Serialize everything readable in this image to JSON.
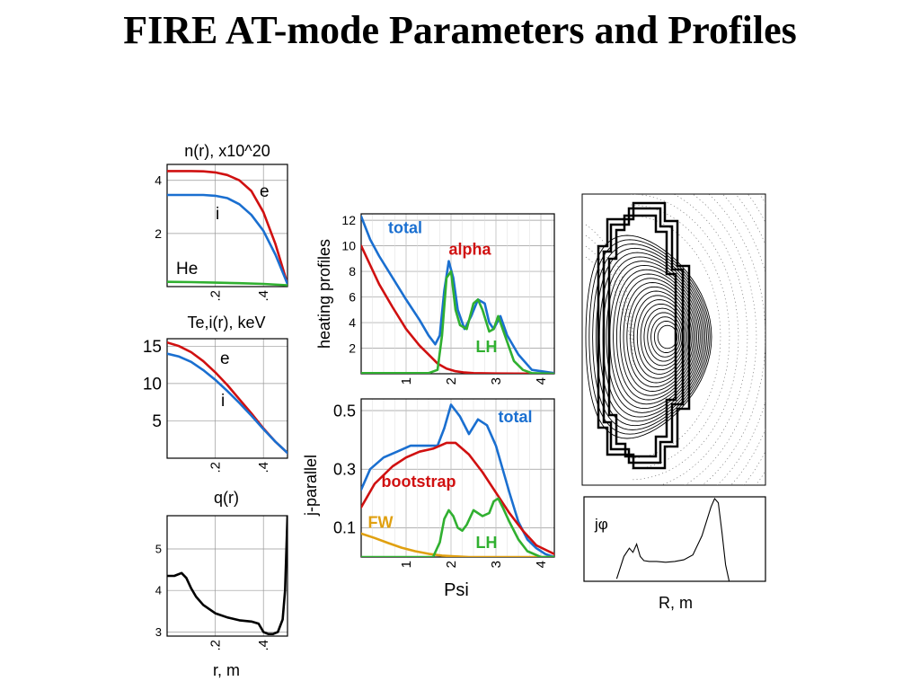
{
  "title": "FIRE AT-mode Parameters and Profiles",
  "chart_data": [
    {
      "id": "density",
      "type": "line",
      "title": "n(r), x10^20",
      "xlabel": "",
      "ylabel": "",
      "xlim": [
        0,
        0.5
      ],
      "ylim": [
        0,
        4.6
      ],
      "xticks": [
        0.2,
        0.4
      ],
      "xtick_labels": [
        ".2",
        ".4"
      ],
      "yticks": [
        2,
        4
      ],
      "ytick_labels": [
        "2",
        "4"
      ],
      "grid": true,
      "series": [
        {
          "name": "e",
          "color": "#d01010",
          "x": [
            0,
            0.05,
            0.1,
            0.15,
            0.2,
            0.25,
            0.3,
            0.35,
            0.4,
            0.45,
            0.5
          ],
          "y": [
            4.35,
            4.35,
            4.35,
            4.34,
            4.3,
            4.2,
            4.0,
            3.6,
            2.8,
            1.6,
            0.1
          ]
        },
        {
          "name": "i",
          "color": "#1a6fd0",
          "x": [
            0,
            0.05,
            0.1,
            0.15,
            0.2,
            0.25,
            0.3,
            0.35,
            0.4,
            0.45,
            0.5
          ],
          "y": [
            3.45,
            3.45,
            3.45,
            3.45,
            3.42,
            3.33,
            3.1,
            2.7,
            2.1,
            1.2,
            0.1
          ]
        },
        {
          "name": "He",
          "color": "#30b030",
          "x": [
            0,
            0.1,
            0.2,
            0.3,
            0.4,
            0.5
          ],
          "y": [
            0.18,
            0.17,
            0.15,
            0.13,
            0.1,
            0.05
          ]
        }
      ]
    },
    {
      "id": "temperature",
      "type": "line",
      "title": "Te,i(r), keV",
      "xlabel": "",
      "ylabel": "",
      "xlim": [
        0,
        0.5
      ],
      "ylim": [
        0,
        16
      ],
      "xticks": [
        0.2,
        0.4
      ],
      "xtick_labels": [
        ".2",
        ".4"
      ],
      "yticks": [
        5,
        10,
        15
      ],
      "ytick_labels": [
        "5",
        "10",
        "15"
      ],
      "grid": true,
      "series": [
        {
          "name": "e",
          "color": "#d01010",
          "x": [
            0,
            0.05,
            0.1,
            0.15,
            0.2,
            0.25,
            0.3,
            0.35,
            0.4,
            0.45,
            0.5
          ],
          "y": [
            15.5,
            15.0,
            14.2,
            13.0,
            11.5,
            9.8,
            7.9,
            6.0,
            4.0,
            2.2,
            0.7
          ]
        },
        {
          "name": "i",
          "color": "#1a6fd0",
          "x": [
            0,
            0.05,
            0.1,
            0.15,
            0.2,
            0.25,
            0.3,
            0.35,
            0.4,
            0.45,
            0.5
          ],
          "y": [
            14.0,
            13.6,
            12.9,
            11.8,
            10.5,
            9.0,
            7.4,
            5.7,
            3.9,
            2.2,
            0.7
          ]
        }
      ]
    },
    {
      "id": "safety-factor",
      "type": "line",
      "title": "q(r)",
      "xlabel": "r, m",
      "ylabel": "",
      "xlim": [
        0,
        0.5
      ],
      "ylim": [
        2.9,
        5.8
      ],
      "xticks": [
        0.2,
        0.4
      ],
      "xtick_labels": [
        ".2",
        ".4"
      ],
      "yticks": [
        3,
        4,
        5
      ],
      "ytick_labels": [
        "3",
        "4",
        "5"
      ],
      "grid": true,
      "series": [
        {
          "name": "",
          "color": "#000000",
          "x": [
            0,
            0.03,
            0.06,
            0.08,
            0.1,
            0.12,
            0.15,
            0.2,
            0.25,
            0.3,
            0.35,
            0.38,
            0.4,
            0.42,
            0.44,
            0.46,
            0.48,
            0.49,
            0.5
          ],
          "y": [
            4.35,
            4.35,
            4.42,
            4.3,
            4.05,
            3.85,
            3.65,
            3.45,
            3.35,
            3.28,
            3.25,
            3.2,
            3.0,
            2.95,
            2.95,
            3.0,
            3.3,
            4.0,
            5.8
          ]
        }
      ]
    },
    {
      "id": "heating",
      "type": "line",
      "title": "",
      "xlabel": "",
      "ylabel": "heating profiles",
      "xlim": [
        0,
        4.3
      ],
      "ylim": [
        0,
        12.5
      ],
      "xticks": [
        1,
        2,
        3,
        4
      ],
      "xtick_labels": [
        "1",
        "2",
        "3",
        "4"
      ],
      "yticks": [
        2,
        4,
        6,
        8,
        10,
        12
      ],
      "ytick_labels": [
        "2",
        "4",
        "6",
        "8",
        "10",
        "12"
      ],
      "grid": true,
      "series": [
        {
          "name": "total",
          "color": "#1a6fd0",
          "x": [
            0,
            0.2,
            0.4,
            0.7,
            1.0,
            1.3,
            1.5,
            1.65,
            1.75,
            1.85,
            1.95,
            2.05,
            2.15,
            2.3,
            2.45,
            2.6,
            2.75,
            2.85,
            2.95,
            3.1,
            3.25,
            3.5,
            3.8,
            4.3
          ],
          "y": [
            12.3,
            10.5,
            9.2,
            7.5,
            5.8,
            4.2,
            3.0,
            2.3,
            3.0,
            6.5,
            8.8,
            7.5,
            5.0,
            3.5,
            4.5,
            5.8,
            5.5,
            4.0,
            3.5,
            4.5,
            3.0,
            1.5,
            0.3,
            0.05
          ]
        },
        {
          "name": "alpha",
          "color": "#d01010",
          "x": [
            0,
            0.2,
            0.4,
            0.7,
            1.0,
            1.3,
            1.5,
            1.7,
            1.9,
            2.1,
            2.3,
            2.5,
            3.0,
            4.3
          ],
          "y": [
            10.0,
            8.5,
            7.0,
            5.2,
            3.5,
            2.2,
            1.5,
            0.8,
            0.4,
            0.2,
            0.1,
            0.05,
            0.02,
            0.0
          ]
        },
        {
          "name": "LH",
          "color": "#30b030",
          "x": [
            0,
            1.5,
            1.7,
            1.8,
            1.9,
            2.0,
            2.1,
            2.2,
            2.35,
            2.5,
            2.6,
            2.7,
            2.85,
            2.95,
            3.05,
            3.2,
            3.4,
            3.6,
            3.8,
            4.3
          ],
          "y": [
            0.05,
            0.05,
            0.3,
            3.0,
            7.5,
            8.0,
            5.0,
            3.8,
            3.5,
            5.5,
            5.8,
            5.0,
            3.3,
            3.5,
            4.5,
            3.0,
            1.0,
            0.3,
            0.05,
            0.0
          ]
        }
      ],
      "annotations": [
        {
          "text": "total",
          "color": "#1a6fd0",
          "x": 0.6,
          "y": 11.0
        },
        {
          "text": "alpha",
          "color": "#d01010",
          "x": 1.95,
          "y": 9.3
        },
        {
          "text": "LH",
          "color": "#30b030",
          "x": 2.55,
          "y": 1.7
        }
      ]
    },
    {
      "id": "current",
      "type": "line",
      "title": "",
      "xlabel": "Psi",
      "ylabel": "j-parallel",
      "xlim": [
        0,
        4.3
      ],
      "ylim": [
        0,
        0.54
      ],
      "xticks": [
        1,
        2,
        3,
        4
      ],
      "xtick_labels": [
        "1",
        "2",
        "3",
        "4"
      ],
      "yticks": [
        0.1,
        0.3,
        0.5
      ],
      "ytick_labels": [
        "0.1",
        "0.3",
        "0.5"
      ],
      "grid": true,
      "series": [
        {
          "name": "total",
          "color": "#1a6fd0",
          "x": [
            0,
            0.2,
            0.5,
            0.8,
            1.1,
            1.4,
            1.7,
            1.85,
            2.0,
            2.2,
            2.4,
            2.6,
            2.8,
            3.0,
            3.15,
            3.3,
            3.5,
            3.7,
            3.9,
            4.1,
            4.3
          ],
          "y": [
            0.23,
            0.3,
            0.34,
            0.36,
            0.38,
            0.38,
            0.38,
            0.44,
            0.52,
            0.48,
            0.42,
            0.47,
            0.45,
            0.38,
            0.3,
            0.22,
            0.12,
            0.06,
            0.03,
            0.01,
            0.0
          ]
        },
        {
          "name": "bootstrap",
          "color": "#d01010",
          "x": [
            0,
            0.3,
            0.7,
            1.0,
            1.3,
            1.6,
            1.9,
            2.1,
            2.4,
            2.7,
            3.0,
            3.3,
            3.6,
            3.9,
            4.3
          ],
          "y": [
            0.17,
            0.25,
            0.31,
            0.34,
            0.36,
            0.37,
            0.39,
            0.39,
            0.35,
            0.29,
            0.22,
            0.15,
            0.09,
            0.04,
            0.01
          ]
        },
        {
          "name": "FW",
          "color": "#e0a010",
          "x": [
            0,
            0.3,
            0.6,
            0.9,
            1.2,
            1.5,
            1.8,
            2.1,
            2.4,
            4.3
          ],
          "y": [
            0.08,
            0.065,
            0.048,
            0.032,
            0.02,
            0.011,
            0.005,
            0.002,
            0.0,
            0.0
          ]
        },
        {
          "name": "LH",
          "color": "#30b030",
          "x": [
            0,
            1.6,
            1.75,
            1.85,
            1.95,
            2.05,
            2.15,
            2.25,
            2.35,
            2.5,
            2.6,
            2.7,
            2.85,
            2.95,
            3.05,
            3.15,
            3.3,
            3.5,
            3.7,
            4.0,
            4.3
          ],
          "y": [
            0.0,
            0.0,
            0.05,
            0.13,
            0.16,
            0.14,
            0.1,
            0.09,
            0.11,
            0.16,
            0.15,
            0.14,
            0.15,
            0.19,
            0.2,
            0.17,
            0.12,
            0.06,
            0.02,
            0.0,
            0.0
          ]
        }
      ],
      "annotations": [
        {
          "text": "total",
          "color": "#1a6fd0",
          "x": 3.05,
          "y": 0.46
        },
        {
          "text": "bootstrap",
          "color": "#d01010",
          "x": 0.45,
          "y": 0.24
        },
        {
          "text": "FW",
          "color": "#e0a010",
          "x": 0.15,
          "y": 0.1
        },
        {
          "text": "LH",
          "color": "#30b030",
          "x": 2.55,
          "y": 0.03
        }
      ]
    },
    {
      "id": "current-density",
      "type": "line",
      "title": "",
      "xlabel": "R, m",
      "ylabel": "",
      "annotations": [
        {
          "text": "jφ"
        }
      ],
      "xlim": [
        0,
        1
      ],
      "ylim": [
        0,
        1
      ],
      "grid": false,
      "series": [
        {
          "name": "",
          "color": "#000000",
          "x": [
            0.18,
            0.22,
            0.25,
            0.27,
            0.29,
            0.31,
            0.33,
            0.36,
            0.4,
            0.45,
            0.5,
            0.55,
            0.6,
            0.65,
            0.7,
            0.72,
            0.74,
            0.76,
            0.78,
            0.8
          ],
          "y": [
            0.03,
            0.3,
            0.4,
            0.35,
            0.45,
            0.3,
            0.25,
            0.24,
            0.24,
            0.23,
            0.24,
            0.26,
            0.32,
            0.55,
            0.9,
            1.0,
            0.95,
            0.6,
            0.2,
            0.0
          ]
        }
      ]
    }
  ]
}
